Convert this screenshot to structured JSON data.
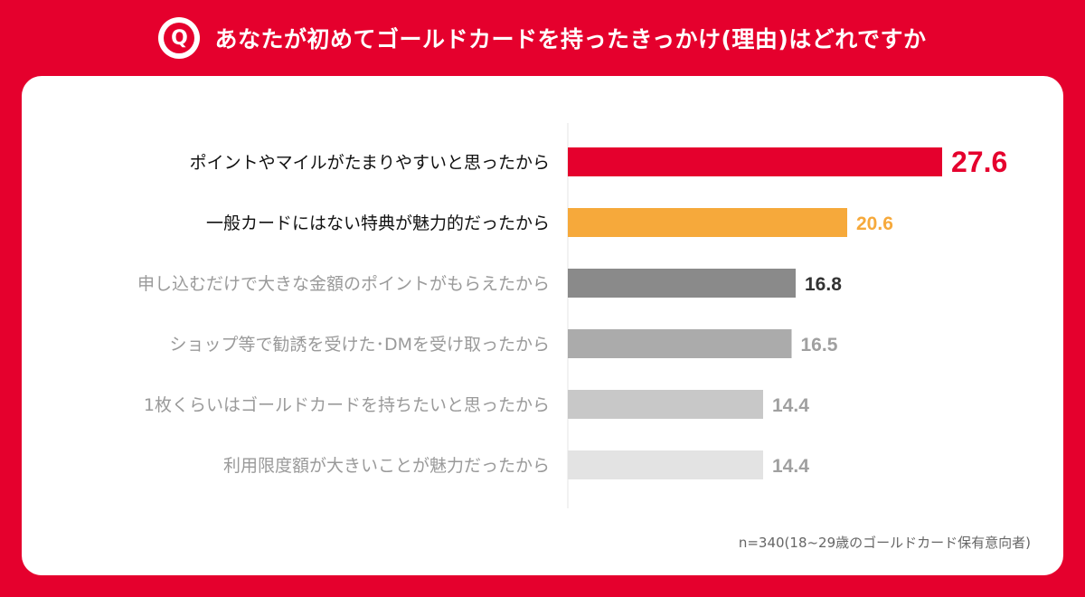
{
  "header": {
    "badge_letter": "Q",
    "title": "あなたが初めてゴールドカードを持ったきっかけ(理由)はどれですか"
  },
  "chart_data": {
    "type": "bar",
    "orientation": "horizontal",
    "title": "あなたが初めてゴールドカードを持ったきっかけ(理由)はどれですか",
    "unit": "%",
    "categories": [
      "ポイントやマイルがたまりやすいと思ったから",
      "一般カードにはない特典が魅力的だったから",
      "申し込むだけで大きな金額のポイントがもらえたから",
      "ショップ等で勧誘を受けた･DMを受け取ったから",
      "1枚くらいはゴールドカードを持ちたいと思ったから",
      "利用限度額が大きいことが魅力だったから"
    ],
    "values": [
      27.6,
      20.6,
      16.8,
      16.5,
      14.4,
      14.4
    ],
    "value_labels": [
      "27.6",
      "20.6",
      "16.8",
      "16.5",
      "14.4",
      "14.4"
    ],
    "bar_colors": [
      "#e5002d",
      "#f6a93b",
      "#8a8a8a",
      "#ababab",
      "#c8c8c8",
      "#e3e3e3"
    ],
    "label_colors": [
      "#e5002d",
      "#f6a93b",
      "#333333",
      "#a0a0a0",
      "#a0a0a0",
      "#a0a0a0"
    ],
    "category_colors": [
      "#111111",
      "#111111",
      "#9a9a9a",
      "#9a9a9a",
      "#9a9a9a",
      "#9a9a9a"
    ],
    "xlim": [
      0,
      27.6
    ]
  },
  "footnote": "n=340(18~29歳のゴールドカード保有意向者)"
}
